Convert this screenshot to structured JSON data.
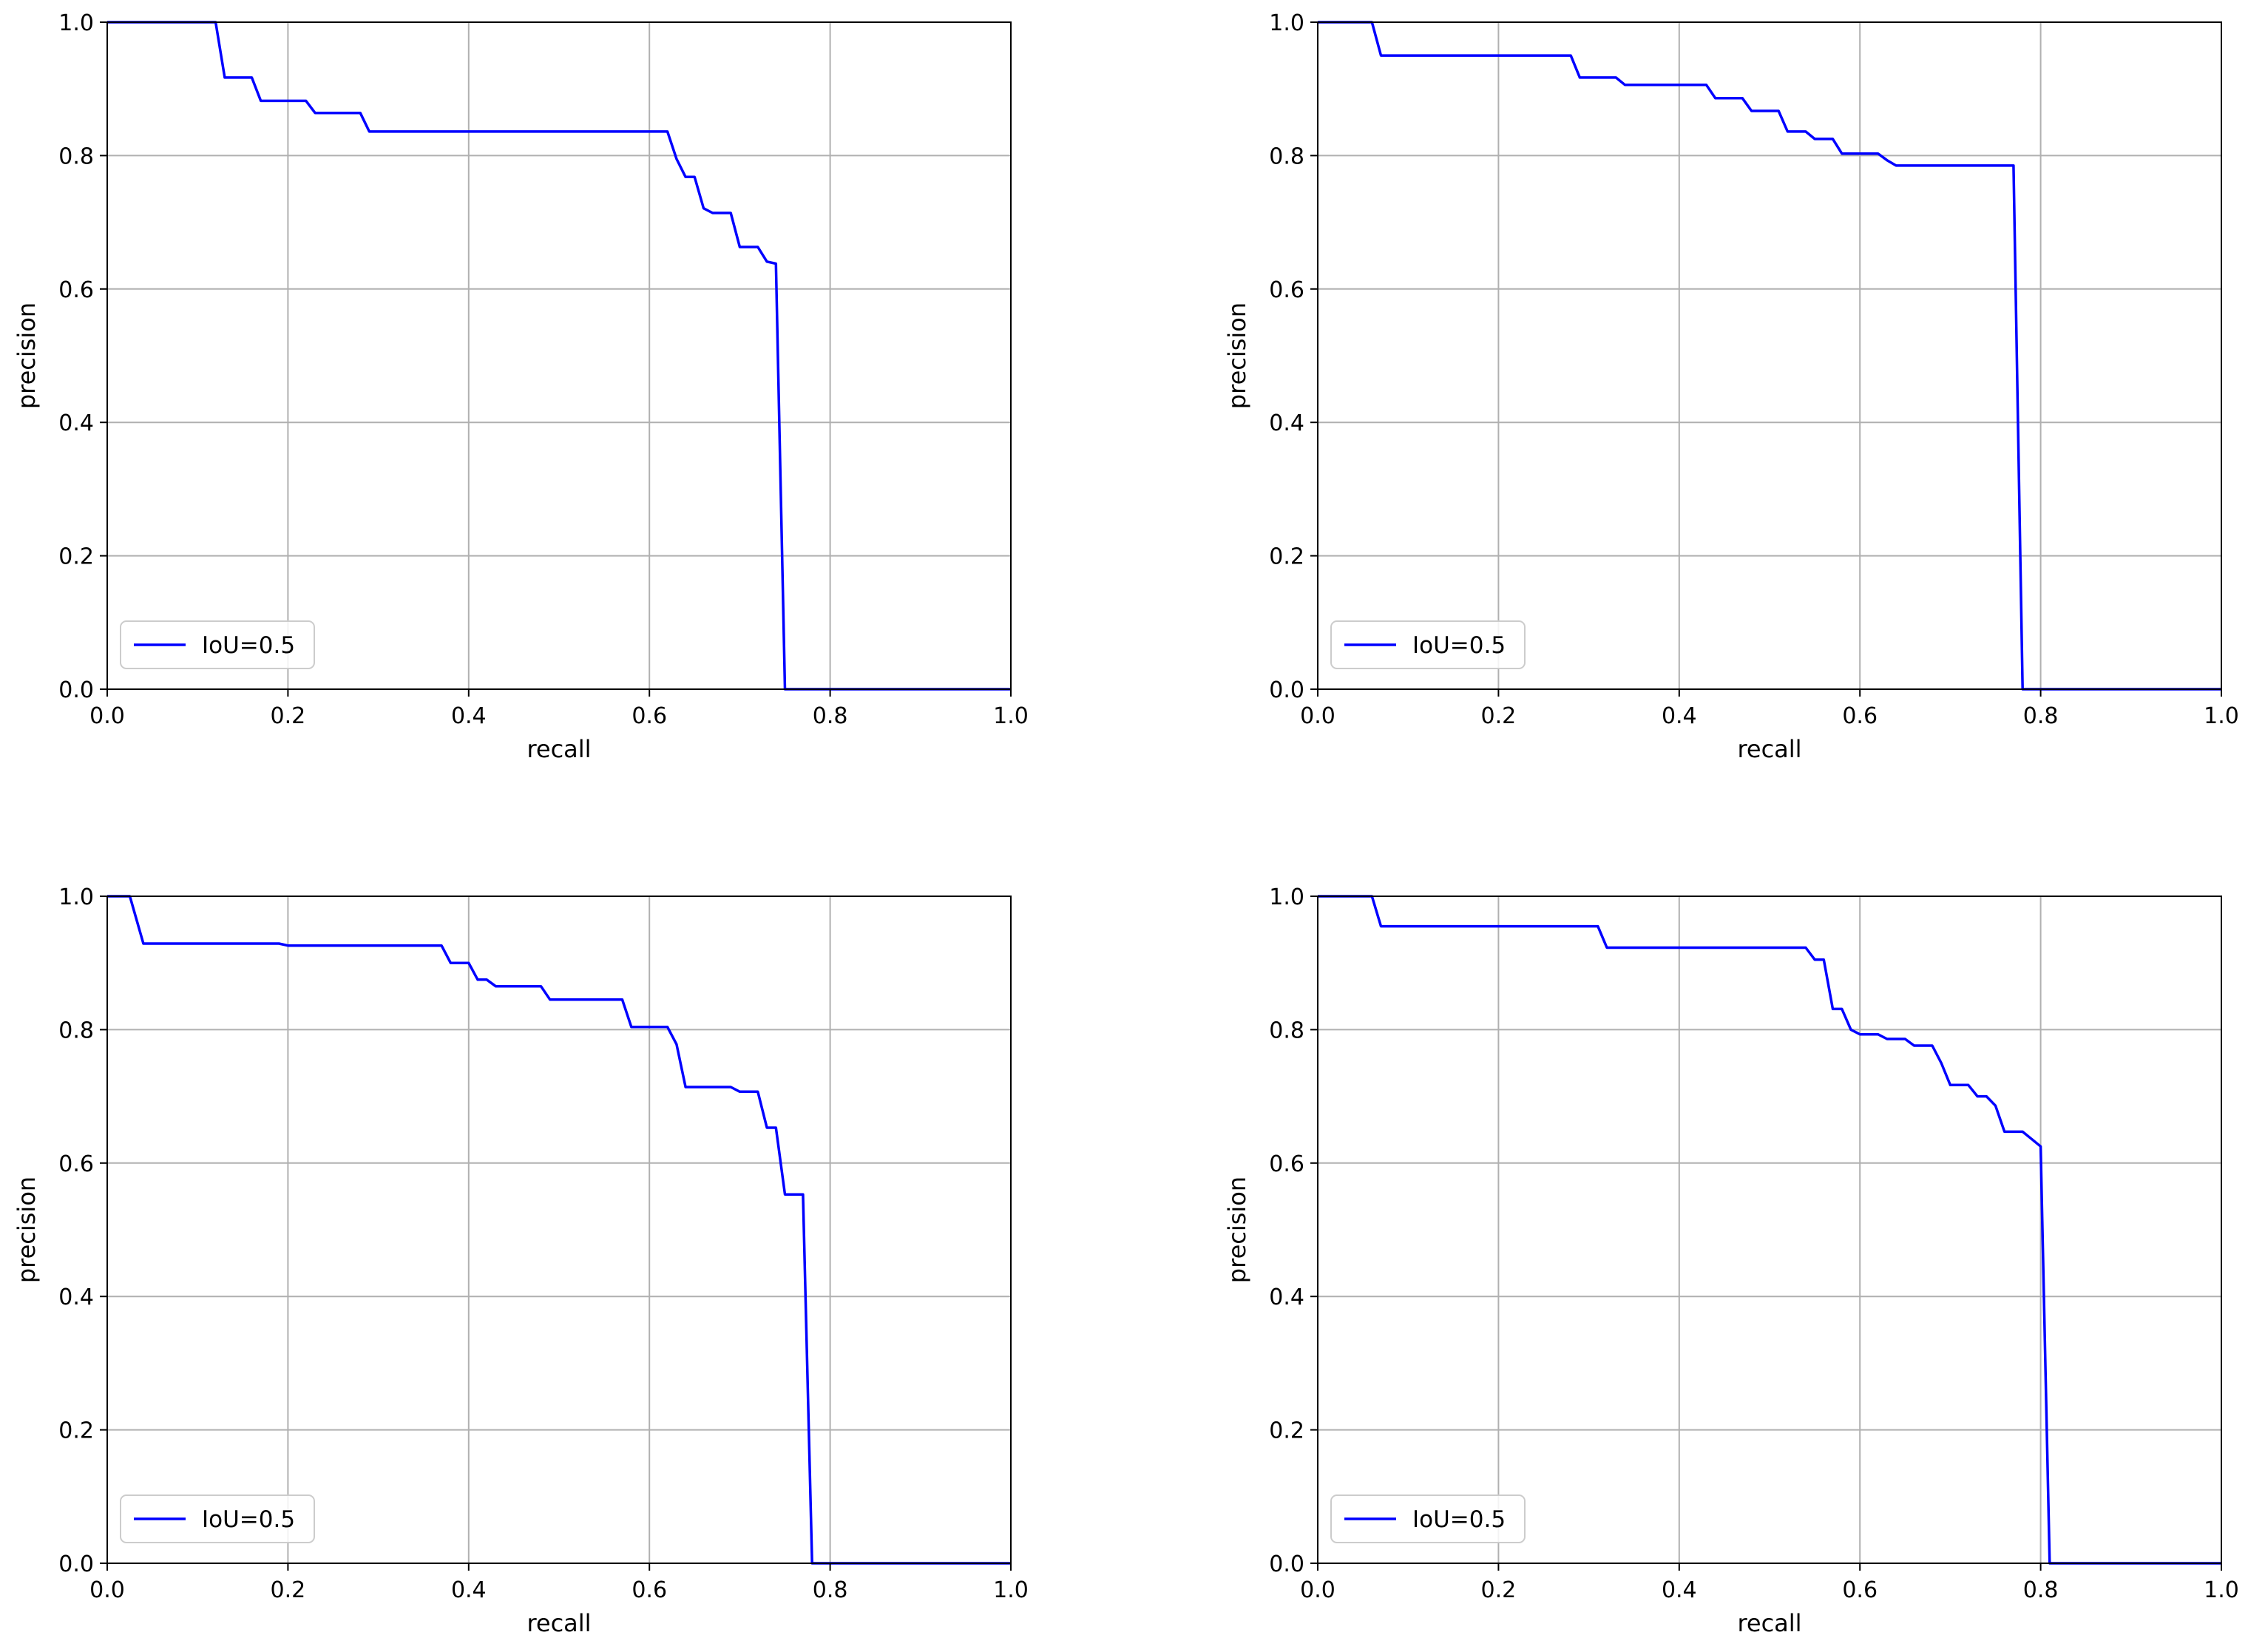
{
  "chart_data": [
    {
      "type": "line",
      "title": "",
      "xlabel": "recall",
      "ylabel": "precision",
      "xlim": [
        0,
        1
      ],
      "ylim": [
        0,
        1
      ],
      "xticks": [
        "0.0",
        "0.2",
        "0.4",
        "0.6",
        "0.8",
        "1.0"
      ],
      "yticks": [
        "0.0",
        "0.2",
        "0.4",
        "0.6",
        "0.8",
        "1.0"
      ],
      "grid": true,
      "legend_position": "lower-left",
      "series": [
        {
          "name": "IoU=0.5",
          "color": "#0000ff",
          "x": [
            0,
            0.12,
            0.13,
            0.16,
            0.17,
            0.22,
            0.23,
            0.28,
            0.29,
            0.62,
            0.63,
            0.64,
            0.65,
            0.66,
            0.67,
            0.69,
            0.7,
            0.72,
            0.73,
            0.74,
            0.75,
            1.0
          ],
          "y": [
            1.0,
            1.0,
            0.917,
            0.917,
            0.882,
            0.882,
            0.864,
            0.864,
            0.836,
            0.836,
            0.795,
            0.768,
            0.768,
            0.721,
            0.714,
            0.714,
            0.663,
            0.663,
            0.641,
            0.638,
            0.0,
            0.0
          ]
        }
      ]
    },
    {
      "type": "line",
      "title": "",
      "xlabel": "recall",
      "ylabel": "precision",
      "xlim": [
        0,
        1
      ],
      "ylim": [
        0,
        1
      ],
      "xticks": [
        "0.0",
        "0.2",
        "0.4",
        "0.6",
        "0.8",
        "1.0"
      ],
      "yticks": [
        "0.0",
        "0.2",
        "0.4",
        "0.6",
        "0.8",
        "1.0"
      ],
      "grid": true,
      "legend_position": "lower-left",
      "series": [
        {
          "name": "IoU=0.5",
          "color": "#0000ff",
          "x": [
            0,
            0.06,
            0.07,
            0.28,
            0.29,
            0.33,
            0.34,
            0.43,
            0.44,
            0.47,
            0.48,
            0.51,
            0.52,
            0.54,
            0.55,
            0.57,
            0.58,
            0.62,
            0.63,
            0.64,
            0.77,
            0.78,
            1.0
          ],
          "y": [
            1.0,
            1.0,
            0.95,
            0.95,
            0.917,
            0.917,
            0.906,
            0.906,
            0.886,
            0.886,
            0.867,
            0.867,
            0.836,
            0.836,
            0.825,
            0.825,
            0.803,
            0.803,
            0.793,
            0.785,
            0.785,
            0.0,
            0.0
          ]
        }
      ]
    },
    {
      "type": "line",
      "title": "",
      "xlabel": "recall",
      "ylabel": "precision",
      "xlim": [
        0,
        1
      ],
      "ylim": [
        0,
        1
      ],
      "xticks": [
        "0.0",
        "0.2",
        "0.4",
        "0.6",
        "0.8",
        "1.0"
      ],
      "yticks": [
        "0.0",
        "0.2",
        "0.4",
        "0.6",
        "0.8",
        "1.0"
      ],
      "grid": true,
      "legend_position": "lower-left",
      "series": [
        {
          "name": "IoU=0.5",
          "color": "#0000ff",
          "x": [
            0,
            0.025,
            0.04,
            0.19,
            0.2,
            0.37,
            0.38,
            0.4,
            0.41,
            0.42,
            0.43,
            0.48,
            0.49,
            0.57,
            0.58,
            0.62,
            0.63,
            0.64,
            0.69,
            0.7,
            0.72,
            0.73,
            0.74,
            0.75,
            0.77,
            0.78,
            1.0
          ],
          "y": [
            1.0,
            1.0,
            0.929,
            0.929,
            0.926,
            0.926,
            0.9,
            0.9,
            0.875,
            0.875,
            0.865,
            0.865,
            0.845,
            0.845,
            0.804,
            0.804,
            0.778,
            0.714,
            0.714,
            0.707,
            0.707,
            0.653,
            0.653,
            0.553,
            0.553,
            0.0,
            0.0
          ]
        }
      ]
    },
    {
      "type": "line",
      "title": "",
      "xlabel": "recall",
      "ylabel": "precision",
      "xlim": [
        0,
        1
      ],
      "ylim": [
        0,
        1
      ],
      "xticks": [
        "0.0",
        "0.2",
        "0.4",
        "0.6",
        "0.8",
        "1.0"
      ],
      "yticks": [
        "0.0",
        "0.2",
        "0.4",
        "0.6",
        "0.8",
        "1.0"
      ],
      "grid": true,
      "legend_position": "lower-left",
      "series": [
        {
          "name": "IoU=0.5",
          "color": "#0000ff",
          "x": [
            0,
            0.06,
            0.07,
            0.31,
            0.32,
            0.54,
            0.55,
            0.56,
            0.57,
            0.58,
            0.59,
            0.6,
            0.62,
            0.63,
            0.65,
            0.66,
            0.68,
            0.69,
            0.7,
            0.72,
            0.73,
            0.74,
            0.75,
            0.76,
            0.78,
            0.79,
            0.8,
            0.81,
            1.0
          ],
          "y": [
            1.0,
            1.0,
            0.955,
            0.955,
            0.923,
            0.923,
            0.905,
            0.905,
            0.831,
            0.831,
            0.8,
            0.793,
            0.793,
            0.786,
            0.786,
            0.776,
            0.776,
            0.75,
            0.717,
            0.717,
            0.7,
            0.7,
            0.686,
            0.647,
            0.647,
            0.636,
            0.625,
            0.0,
            0.0
          ]
        }
      ]
    }
  ]
}
